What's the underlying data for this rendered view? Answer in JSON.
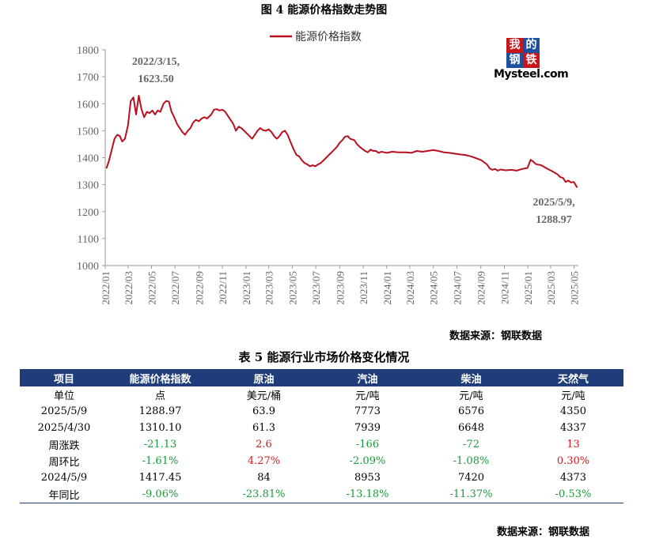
{
  "figure_title": "图 4  能源价格指数走势图",
  "source_chart": "数据来源：钢联数据",
  "logo": {
    "chars": [
      "我",
      "的",
      "钢",
      "铁"
    ],
    "brand": "Mysteel.com"
  },
  "chart_data": {
    "type": "line",
    "title": "图 4  能源价格指数走势图",
    "series": [
      {
        "name": "能源价格指数",
        "color": "#b8101e",
        "points": [
          [
            "2022-01-04",
            1360
          ],
          [
            "2022-01-10",
            1385
          ],
          [
            "2022-01-18",
            1430
          ],
          [
            "2022-01-25",
            1470
          ],
          [
            "2022-02-01",
            1485
          ],
          [
            "2022-02-08",
            1480
          ],
          [
            "2022-02-14",
            1460
          ],
          [
            "2022-02-21",
            1470
          ],
          [
            "2022-03-01",
            1520
          ],
          [
            "2022-03-08",
            1610
          ],
          [
            "2022-03-15",
            1623.5
          ],
          [
            "2022-03-22",
            1560
          ],
          [
            "2022-03-29",
            1630
          ],
          [
            "2022-04-05",
            1580
          ],
          [
            "2022-04-12",
            1550
          ],
          [
            "2022-04-19",
            1570
          ],
          [
            "2022-04-26",
            1565
          ],
          [
            "2022-05-03",
            1575
          ],
          [
            "2022-05-10",
            1560
          ],
          [
            "2022-05-17",
            1575
          ],
          [
            "2022-05-24",
            1570
          ],
          [
            "2022-06-01",
            1600
          ],
          [
            "2022-06-08",
            1610
          ],
          [
            "2022-06-15",
            1608
          ],
          [
            "2022-06-22",
            1570
          ],
          [
            "2022-06-29",
            1550
          ],
          [
            "2022-07-06",
            1525
          ],
          [
            "2022-07-13",
            1510
          ],
          [
            "2022-07-20",
            1495
          ],
          [
            "2022-07-27",
            1485
          ],
          [
            "2022-08-03",
            1500
          ],
          [
            "2022-08-10",
            1510
          ],
          [
            "2022-08-17",
            1530
          ],
          [
            "2022-08-24",
            1540
          ],
          [
            "2022-09-01",
            1535
          ],
          [
            "2022-09-08",
            1545
          ],
          [
            "2022-09-15",
            1550
          ],
          [
            "2022-09-22",
            1545
          ],
          [
            "2022-10-03",
            1560
          ],
          [
            "2022-10-10",
            1578
          ],
          [
            "2022-10-17",
            1580
          ],
          [
            "2022-10-24",
            1575
          ],
          [
            "2022-11-01",
            1578
          ],
          [
            "2022-11-08",
            1570
          ],
          [
            "2022-11-15",
            1555
          ],
          [
            "2022-11-22",
            1540
          ],
          [
            "2022-11-29",
            1525
          ],
          [
            "2022-12-06",
            1500
          ],
          [
            "2022-12-13",
            1515
          ],
          [
            "2022-12-20",
            1510
          ],
          [
            "2022-12-27",
            1500
          ],
          [
            "2023-01-03",
            1490
          ],
          [
            "2023-01-10",
            1480
          ],
          [
            "2023-01-17",
            1470
          ],
          [
            "2023-01-31",
            1500
          ],
          [
            "2023-02-07",
            1510
          ],
          [
            "2023-02-14",
            1502
          ],
          [
            "2023-02-21",
            1500
          ],
          [
            "2023-03-01",
            1505
          ],
          [
            "2023-03-08",
            1495
          ],
          [
            "2023-03-15",
            1480
          ],
          [
            "2023-03-22",
            1470
          ],
          [
            "2023-03-29",
            1480
          ],
          [
            "2023-04-05",
            1495
          ],
          [
            "2023-04-12",
            1500
          ],
          [
            "2023-04-19",
            1485
          ],
          [
            "2023-04-26",
            1460
          ],
          [
            "2023-05-05",
            1430
          ],
          [
            "2023-05-12",
            1410
          ],
          [
            "2023-05-19",
            1405
          ],
          [
            "2023-05-26",
            1390
          ],
          [
            "2023-06-02",
            1380
          ],
          [
            "2023-06-09",
            1375
          ],
          [
            "2023-06-16",
            1368
          ],
          [
            "2023-06-23",
            1372
          ],
          [
            "2023-06-30",
            1368
          ],
          [
            "2023-07-07",
            1375
          ],
          [
            "2023-07-14",
            1380
          ],
          [
            "2023-07-21",
            1390
          ],
          [
            "2023-07-28",
            1400
          ],
          [
            "2023-08-04",
            1410
          ],
          [
            "2023-08-11",
            1420
          ],
          [
            "2023-08-18",
            1430
          ],
          [
            "2023-08-25",
            1440
          ],
          [
            "2023-09-01",
            1455
          ],
          [
            "2023-09-08",
            1465
          ],
          [
            "2023-09-15",
            1478
          ],
          [
            "2023-09-22",
            1480
          ],
          [
            "2023-09-28",
            1470
          ],
          [
            "2023-10-09",
            1465
          ],
          [
            "2023-10-16",
            1450
          ],
          [
            "2023-10-23",
            1440
          ],
          [
            "2023-10-30",
            1432
          ],
          [
            "2023-11-06",
            1425
          ],
          [
            "2023-11-13",
            1420
          ],
          [
            "2023-11-20",
            1430
          ],
          [
            "2023-11-27",
            1425
          ],
          [
            "2023-12-04",
            1425
          ],
          [
            "2023-12-11",
            1418
          ],
          [
            "2023-12-18",
            1422
          ],
          [
            "2023-12-25",
            1420
          ],
          [
            "2024-01-02",
            1418
          ],
          [
            "2024-01-15",
            1422
          ],
          [
            "2024-02-01",
            1420
          ],
          [
            "2024-02-20",
            1420
          ],
          [
            "2024-03-05",
            1418
          ],
          [
            "2024-03-19",
            1425
          ],
          [
            "2024-04-02",
            1422
          ],
          [
            "2024-04-16",
            1425
          ],
          [
            "2024-04-30",
            1428
          ],
          [
            "2024-05-14",
            1425
          ],
          [
            "2024-05-28",
            1420
          ],
          [
            "2024-06-11",
            1418
          ],
          [
            "2024-06-25",
            1415
          ],
          [
            "2024-07-09",
            1412
          ],
          [
            "2024-07-23",
            1410
          ],
          [
            "2024-08-06",
            1405
          ],
          [
            "2024-08-20",
            1398
          ],
          [
            "2024-09-03",
            1390
          ],
          [
            "2024-09-17",
            1375
          ],
          [
            "2024-09-24",
            1360
          ],
          [
            "2024-10-01",
            1355
          ],
          [
            "2024-10-08",
            1358
          ],
          [
            "2024-10-15",
            1352
          ],
          [
            "2024-10-22",
            1356
          ],
          [
            "2024-11-05",
            1353
          ],
          [
            "2024-11-19",
            1355
          ],
          [
            "2024-12-03",
            1352
          ],
          [
            "2024-12-17",
            1358
          ],
          [
            "2024-12-31",
            1362
          ],
          [
            "2025-01-08",
            1392
          ],
          [
            "2025-01-15",
            1385
          ],
          [
            "2025-01-22",
            1376
          ],
          [
            "2025-02-05",
            1372
          ],
          [
            "2025-02-19",
            1360
          ],
          [
            "2025-03-05",
            1350
          ],
          [
            "2025-03-19",
            1338
          ],
          [
            "2025-03-26",
            1328
          ],
          [
            "2025-04-02",
            1325
          ],
          [
            "2025-04-09",
            1310
          ],
          [
            "2025-04-16",
            1315
          ],
          [
            "2025-04-23",
            1308
          ],
          [
            "2025-04-30",
            1310.1
          ],
          [
            "2025-05-09",
            1288.97
          ]
        ]
      }
    ],
    "x_ticks": [
      "2022/01",
      "2022/03",
      "2022/05",
      "2022/07",
      "2022/09",
      "2022/11",
      "2023/01",
      "2023/03",
      "2023/05",
      "2023/07",
      "2023/09",
      "2023/11",
      "2024/01",
      "2024/03",
      "2024/05",
      "2024/07",
      "2024/09",
      "2024/11",
      "2025/01",
      "2025/03",
      "2025/05"
    ],
    "ylim": [
      1000,
      1800
    ],
    "y_ticks": [
      1000,
      1100,
      1200,
      1300,
      1400,
      1500,
      1600,
      1700,
      1800
    ],
    "legend_position": "top-center",
    "annotations": [
      {
        "date": "2022-03-15",
        "value": 1623.5,
        "text_line1": "2022/3/15,",
        "text_line2": "1623.50",
        "color": "#666666"
      },
      {
        "date": "2025-05-09",
        "value": 1288.97,
        "text_line1": "2025/5/9,",
        "text_line2": "1288.97",
        "color": "#666666"
      }
    ]
  },
  "table": {
    "title": "表 5 能源行业市场价格变化情况",
    "header": [
      "项目",
      "能源价格指数",
      "原油",
      "汽油",
      "柴油",
      "天然气"
    ],
    "rows": [
      {
        "cells": [
          "单位",
          "点",
          "美元/桶",
          "元/吨",
          "元/吨",
          "元/吨"
        ],
        "colors": [
          "",
          "",
          "",
          "",
          "",
          ""
        ]
      },
      {
        "cells": [
          "2025/5/9",
          "1288.97",
          "63.9",
          "7773",
          "6576",
          "4350"
        ],
        "colors": [
          "",
          "",
          "",
          "",
          "",
          ""
        ]
      },
      {
        "cells": [
          "2025/4/30",
          "1310.10",
          "61.3",
          "7939",
          "6648",
          "4337"
        ],
        "colors": [
          "",
          "",
          "",
          "",
          "",
          ""
        ]
      },
      {
        "cells": [
          "周涨跌",
          "-21.13",
          "2.6",
          "-166",
          "-72",
          "13"
        ],
        "colors": [
          "",
          "neg",
          "pos",
          "neg",
          "neg",
          "pos"
        ]
      },
      {
        "cells": [
          "周环比",
          "-1.61%",
          "4.27%",
          "-2.09%",
          "-1.08%",
          "0.30%"
        ],
        "colors": [
          "",
          "neg",
          "pos",
          "neg",
          "neg",
          "pos"
        ]
      },
      {
        "cells": [
          "2024/5/9",
          "1417.45",
          "84",
          "8953",
          "7420",
          "4373"
        ],
        "colors": [
          "",
          "",
          "",
          "",
          "",
          ""
        ]
      },
      {
        "cells": [
          "年同比",
          "-9.06%",
          "-23.81%",
          "-13.18%",
          "-11.37%",
          "-0.53%"
        ],
        "colors": [
          "",
          "neg",
          "neg",
          "neg",
          "neg",
          "neg"
        ]
      }
    ]
  },
  "source_table": "数据来源：钢联数据"
}
